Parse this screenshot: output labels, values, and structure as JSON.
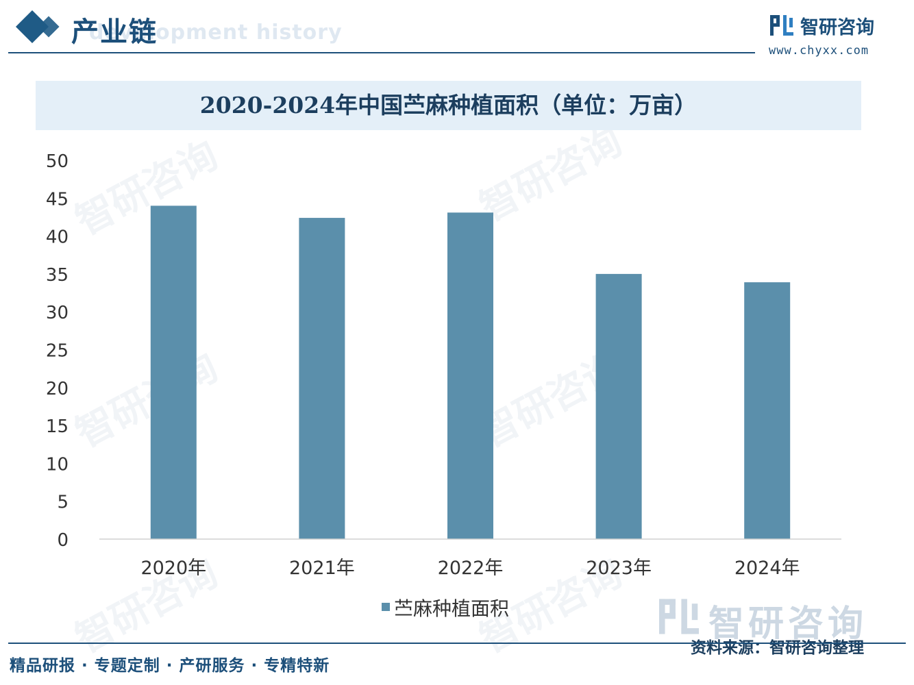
{
  "header": {
    "section_title": "产业链",
    "ghost_text": "development history",
    "brand_name": "智研咨询",
    "brand_url": "www.chyxx.com"
  },
  "chart_data": {
    "type": "bar",
    "title": "2020-2024年中国苎麻种植面积（单位：万亩）",
    "categories": [
      "2020年",
      "2021年",
      "2022年",
      "2023年",
      "2024年"
    ],
    "series": [
      {
        "name": "苎麻种植面积",
        "values": [
          44.0,
          42.4,
          43.1,
          35.0,
          33.9
        ]
      }
    ],
    "ylim": [
      0,
      50
    ],
    "yticks": [
      0,
      5,
      10,
      15,
      20,
      25,
      30,
      35,
      40,
      45,
      50
    ],
    "grid": false,
    "legend_position": "bottom",
    "bar_color": "#5b8fab"
  },
  "footer": {
    "slogan": "精品研报 · 专题定制 · 产研服务 · 专精特新",
    "source_note": "资料来源：智研咨询整理",
    "watermark": "智研咨询"
  },
  "colors": {
    "brand": "#1c4f7a",
    "title_band": "#e4eff8",
    "bar": "#5b8fab"
  }
}
